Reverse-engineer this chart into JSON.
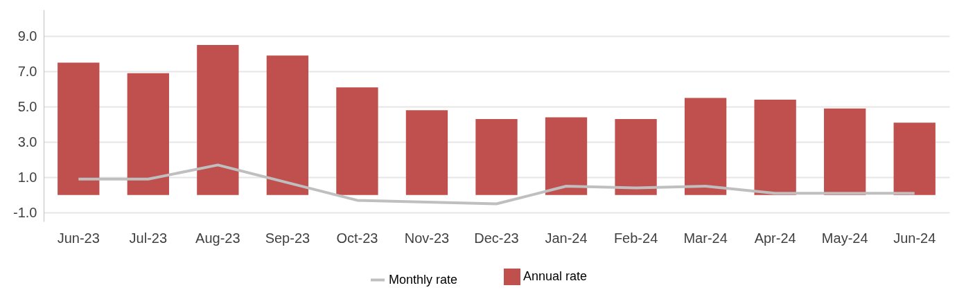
{
  "chart_data": {
    "type": "bar",
    "categories": [
      "Jun-23",
      "Jul-23",
      "Aug-23",
      "Sep-23",
      "Oct-23",
      "Nov-23",
      "Dec-23",
      "Jan-24",
      "Feb-24",
      "Mar-24",
      "Apr-24",
      "May-24",
      "Jun-24"
    ],
    "series": [
      {
        "name": "Monthly rate",
        "type": "line",
        "color": "#bfbfbf",
        "values": [
          0.9,
          0.9,
          1.7,
          0.7,
          -0.3,
          -0.4,
          -0.5,
          0.5,
          0.4,
          0.5,
          0.1,
          0.1,
          0.1
        ]
      },
      {
        "name": "Annual rate",
        "color": "#c0504d",
        "values": [
          7.5,
          6.9,
          8.5,
          7.9,
          6.1,
          4.8,
          4.3,
          4.4,
          4.3,
          5.5,
          5.4,
          4.9,
          4.1
        ]
      }
    ],
    "ylim": [
      -1.5,
      10.5
    ],
    "yticks": [
      {
        "value": -1,
        "label": "-1.0"
      },
      {
        "value": 1,
        "label": "1.0"
      },
      {
        "value": 3,
        "label": "3.0"
      },
      {
        "value": 5,
        "label": "5.0"
      },
      {
        "value": 7,
        "label": "7.0"
      },
      {
        "value": 9,
        "label": "9.0"
      }
    ],
    "grid": "y",
    "legend": "bottom",
    "marker": "none",
    "line_style": "solid"
  }
}
